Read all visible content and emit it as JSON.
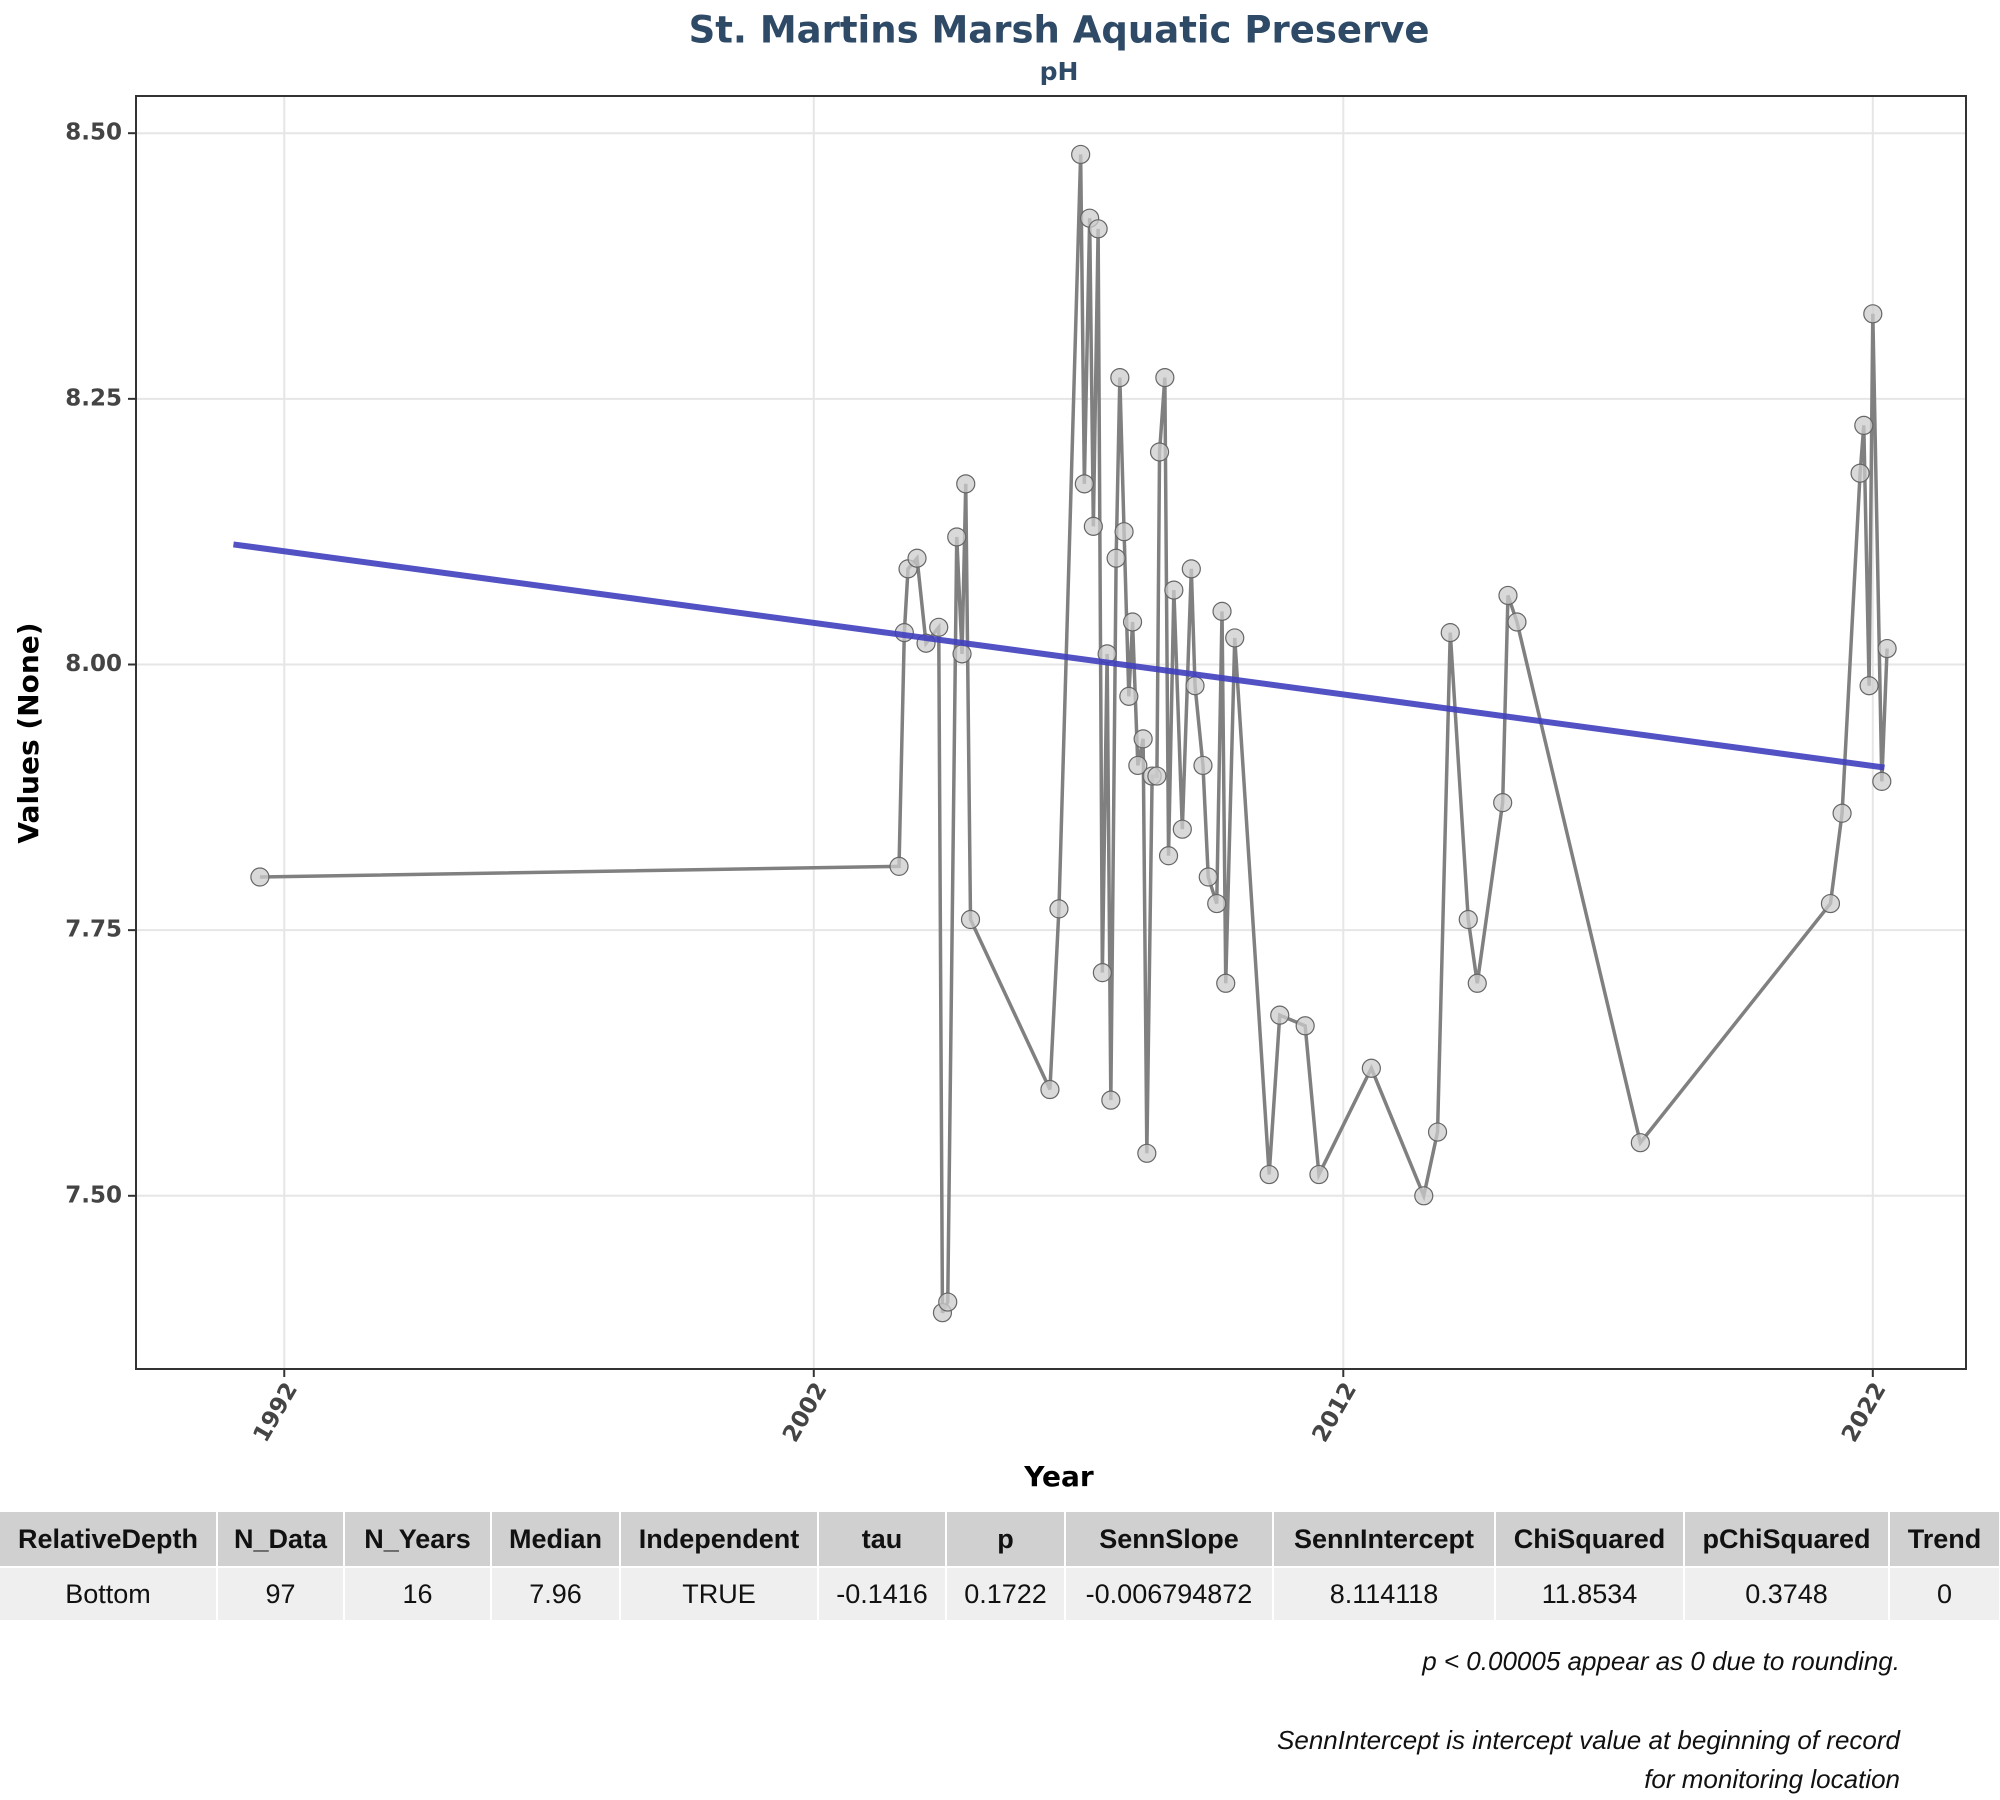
{
  "chart_data": {
    "type": "line",
    "title": "St. Martins Marsh Aquatic Preserve",
    "subtitle": "pH",
    "x_label": "Year",
    "y_label": "Values (None)",
    "xlim": [
      1989.2,
      2023.76
    ],
    "ylim": [
      7.337,
      8.535
    ],
    "xticks": [
      1992,
      2002,
      2012,
      2022
    ],
    "yticks": [
      {
        "value": 7.5,
        "label": "7.50"
      },
      {
        "value": 7.75,
        "label": "7.75"
      },
      {
        "value": 8.0,
        "label": "8.00"
      },
      {
        "value": 8.25,
        "label": "8.25"
      },
      {
        "value": 8.5,
        "label": "8.50"
      }
    ],
    "grid": true,
    "series": [
      {
        "color": "#808080",
        "marker_fill": "#cccccc",
        "x": [
          1991.54,
          2003.61,
          2003.71,
          2003.78,
          2003.95,
          2004.12,
          2004.36,
          2004.43,
          2004.53,
          2004.7,
          2004.8,
          2004.87,
          2004.96,
          2006.46,
          2006.63,
          2007.04,
          2007.11,
          2007.21,
          2007.28,
          2007.37,
          2007.45,
          2007.54,
          2007.61,
          2007.71,
          2007.78,
          2007.86,
          2007.95,
          2008.02,
          2008.12,
          2008.22,
          2008.29,
          2008.39,
          2008.48,
          2008.53,
          2008.63,
          2008.7,
          2008.8,
          2008.96,
          2009.13,
          2009.2,
          2009.35,
          2009.45,
          2009.61,
          2009.71,
          2009.78,
          2009.95,
          2010.6,
          2010.8,
          2011.28,
          2011.54,
          2012.53,
          2013.52,
          2013.78,
          2014.02,
          2014.36,
          2014.53,
          2015.01,
          2015.11,
          2015.28,
          2017.61,
          2021.2,
          2021.42,
          2021.76,
          2021.83,
          2021.93,
          2022.0,
          2022.17,
          2022.27
        ],
        "values": [
          7.8,
          7.81,
          8.03,
          8.09,
          8.1,
          8.02,
          8.035,
          7.39,
          7.4,
          8.12,
          8.01,
          8.17,
          7.76,
          7.6,
          7.77,
          8.48,
          8.17,
          8.42,
          8.13,
          8.41,
          7.71,
          8.01,
          7.59,
          8.1,
          8.27,
          8.125,
          7.97,
          8.04,
          7.905,
          7.93,
          7.54,
          7.895,
          7.895,
          8.2,
          8.27,
          7.82,
          8.07,
          7.845,
          8.09,
          7.98,
          7.905,
          7.8,
          7.775,
          8.05,
          7.7,
          8.025,
          7.52,
          7.67,
          7.66,
          7.52,
          7.62,
          7.5,
          7.56,
          8.03,
          7.76,
          7.7,
          7.87,
          8.065,
          8.04,
          7.55,
          7.775,
          7.86,
          8.18,
          8.225,
          7.98,
          8.33,
          7.89,
          8.015
        ]
      }
    ],
    "trend": {
      "color": "#3f3fbf",
      "x": [
        1991.04,
        2022.22
      ],
      "values": [
        8.113,
        7.903
      ]
    }
  },
  "table": {
    "columns": [
      "RelativeDepth",
      "N_Data",
      "N_Years",
      "Median",
      "Independent",
      "tau",
      "p",
      "SennSlope",
      "SennIntercept",
      "ChiSquared",
      "pChiSquared",
      "Trend"
    ],
    "rows": [
      [
        "Bottom",
        "97",
        "16",
        "7.96",
        "TRUE",
        "-0.1416",
        "0.1722",
        "-0.006794872",
        "8.114118",
        "11.8534",
        "0.3748",
        "0"
      ]
    ]
  },
  "notes": [
    "p < 0.00005 appear as 0 due to rounding.",
    "SennIntercept is intercept value at beginning of record for monitoring location"
  ]
}
